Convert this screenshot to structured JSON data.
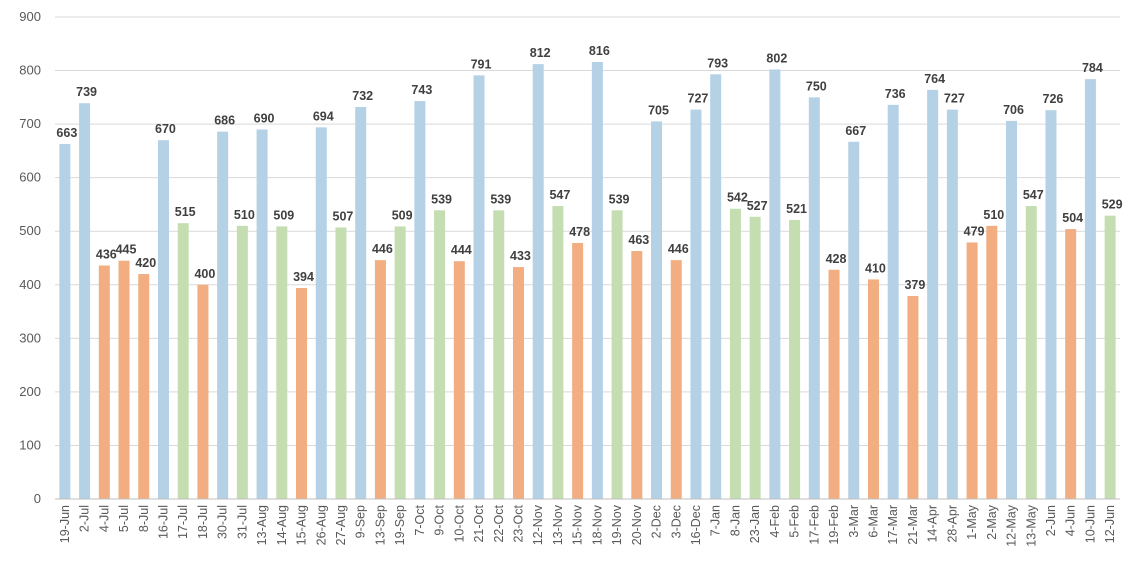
{
  "chart_data": {
    "type": "bar",
    "title": "",
    "xlabel": "",
    "ylabel": "",
    "ylim": [
      0,
      900
    ],
    "yticks": [
      0,
      100,
      200,
      300,
      400,
      500,
      600,
      700,
      800,
      900
    ],
    "grid": true,
    "legend": "none",
    "colors": {
      "blue": "#b4d1e6",
      "orange": "#f2ad81",
      "green": "#c4deb1",
      "gridline": "#d9d9d9",
      "axis": "#bfbfbf",
      "tick_text": "#595959",
      "label_text": "#404040"
    },
    "bars": [
      {
        "category": "19-Jun",
        "value": 663,
        "color": "blue"
      },
      {
        "category": "2-Jul",
        "value": 739,
        "color": "blue"
      },
      {
        "category": "4-Jul",
        "value": 436,
        "color": "orange"
      },
      {
        "category": "5-Jul",
        "value": 445,
        "color": "orange"
      },
      {
        "category": "8-Jul",
        "value": 420,
        "color": "orange"
      },
      {
        "category": "16-Jul",
        "value": 670,
        "color": "blue"
      },
      {
        "category": "17-Jul",
        "value": 515,
        "color": "green"
      },
      {
        "category": "18-Jul",
        "value": 400,
        "color": "orange"
      },
      {
        "category": "30-Jul",
        "value": 686,
        "color": "blue"
      },
      {
        "category": "31-Jul",
        "value": 510,
        "color": "green"
      },
      {
        "category": "13-Aug",
        "value": 690,
        "color": "blue"
      },
      {
        "category": "14-Aug",
        "value": 509,
        "color": "green"
      },
      {
        "category": "15-Aug",
        "value": 394,
        "color": "orange"
      },
      {
        "category": "26-Aug",
        "value": 694,
        "color": "blue"
      },
      {
        "category": "27-Aug",
        "value": 507,
        "color": "green"
      },
      {
        "category": "9-Sep",
        "value": 732,
        "color": "blue"
      },
      {
        "category": "13-Sep",
        "value": 446,
        "color": "orange"
      },
      {
        "category": "19-Sep",
        "value": 509,
        "color": "green"
      },
      {
        "category": "7-Oct",
        "value": 743,
        "color": "blue"
      },
      {
        "category": "9-Oct",
        "value": 539,
        "color": "green"
      },
      {
        "category": "10-Oct",
        "value": 444,
        "color": "orange"
      },
      {
        "category": "21-Oct",
        "value": 791,
        "color": "blue"
      },
      {
        "category": "22-Oct",
        "value": 539,
        "color": "green"
      },
      {
        "category": "23-Oct",
        "value": 433,
        "color": "orange"
      },
      {
        "category": "12-Nov",
        "value": 812,
        "color": "blue"
      },
      {
        "category": "13-Nov",
        "value": 547,
        "color": "green"
      },
      {
        "category": "15-Nov",
        "value": 478,
        "color": "orange"
      },
      {
        "category": "18-Nov",
        "value": 816,
        "color": "blue"
      },
      {
        "category": "19-Nov",
        "value": 539,
        "color": "green"
      },
      {
        "category": "20-Nov",
        "value": 463,
        "color": "orange"
      },
      {
        "category": "2-Dec",
        "value": 705,
        "color": "blue"
      },
      {
        "category": "3-Dec",
        "value": 446,
        "color": "orange"
      },
      {
        "category": "16-Dec",
        "value": 727,
        "color": "blue"
      },
      {
        "category": "7-Jan",
        "value": 793,
        "color": "blue"
      },
      {
        "category": "8-Jan",
        "value": 542,
        "color": "green"
      },
      {
        "category": "23-Jan",
        "value": 527,
        "color": "green"
      },
      {
        "category": "4-Feb",
        "value": 802,
        "color": "blue"
      },
      {
        "category": "5-Feb",
        "value": 521,
        "color": "green"
      },
      {
        "category": "17-Feb",
        "value": 750,
        "color": "blue"
      },
      {
        "category": "19-Feb",
        "value": 428,
        "color": "orange"
      },
      {
        "category": "3-Mar",
        "value": 667,
        "color": "blue"
      },
      {
        "category": "6-Mar",
        "value": 410,
        "color": "orange"
      },
      {
        "category": "17-Mar",
        "value": 736,
        "color": "blue"
      },
      {
        "category": "21-Mar",
        "value": 379,
        "color": "orange"
      },
      {
        "category": "14-Apr",
        "value": 764,
        "color": "blue"
      },
      {
        "category": "28-Apr",
        "value": 727,
        "color": "blue"
      },
      {
        "category": "1-May",
        "value": 479,
        "color": "orange"
      },
      {
        "category": "2-May",
        "value": 510,
        "color": "orange"
      },
      {
        "category": "12-May",
        "value": 706,
        "color": "blue"
      },
      {
        "category": "13-May",
        "value": 547,
        "color": "green"
      },
      {
        "category": "2-Jun",
        "value": 726,
        "color": "blue"
      },
      {
        "category": "4-Jun",
        "value": 504,
        "color": "orange"
      },
      {
        "category": "10-Jun",
        "value": 784,
        "color": "blue"
      },
      {
        "category": "12-Jun",
        "value": 529,
        "color": "green"
      }
    ]
  }
}
